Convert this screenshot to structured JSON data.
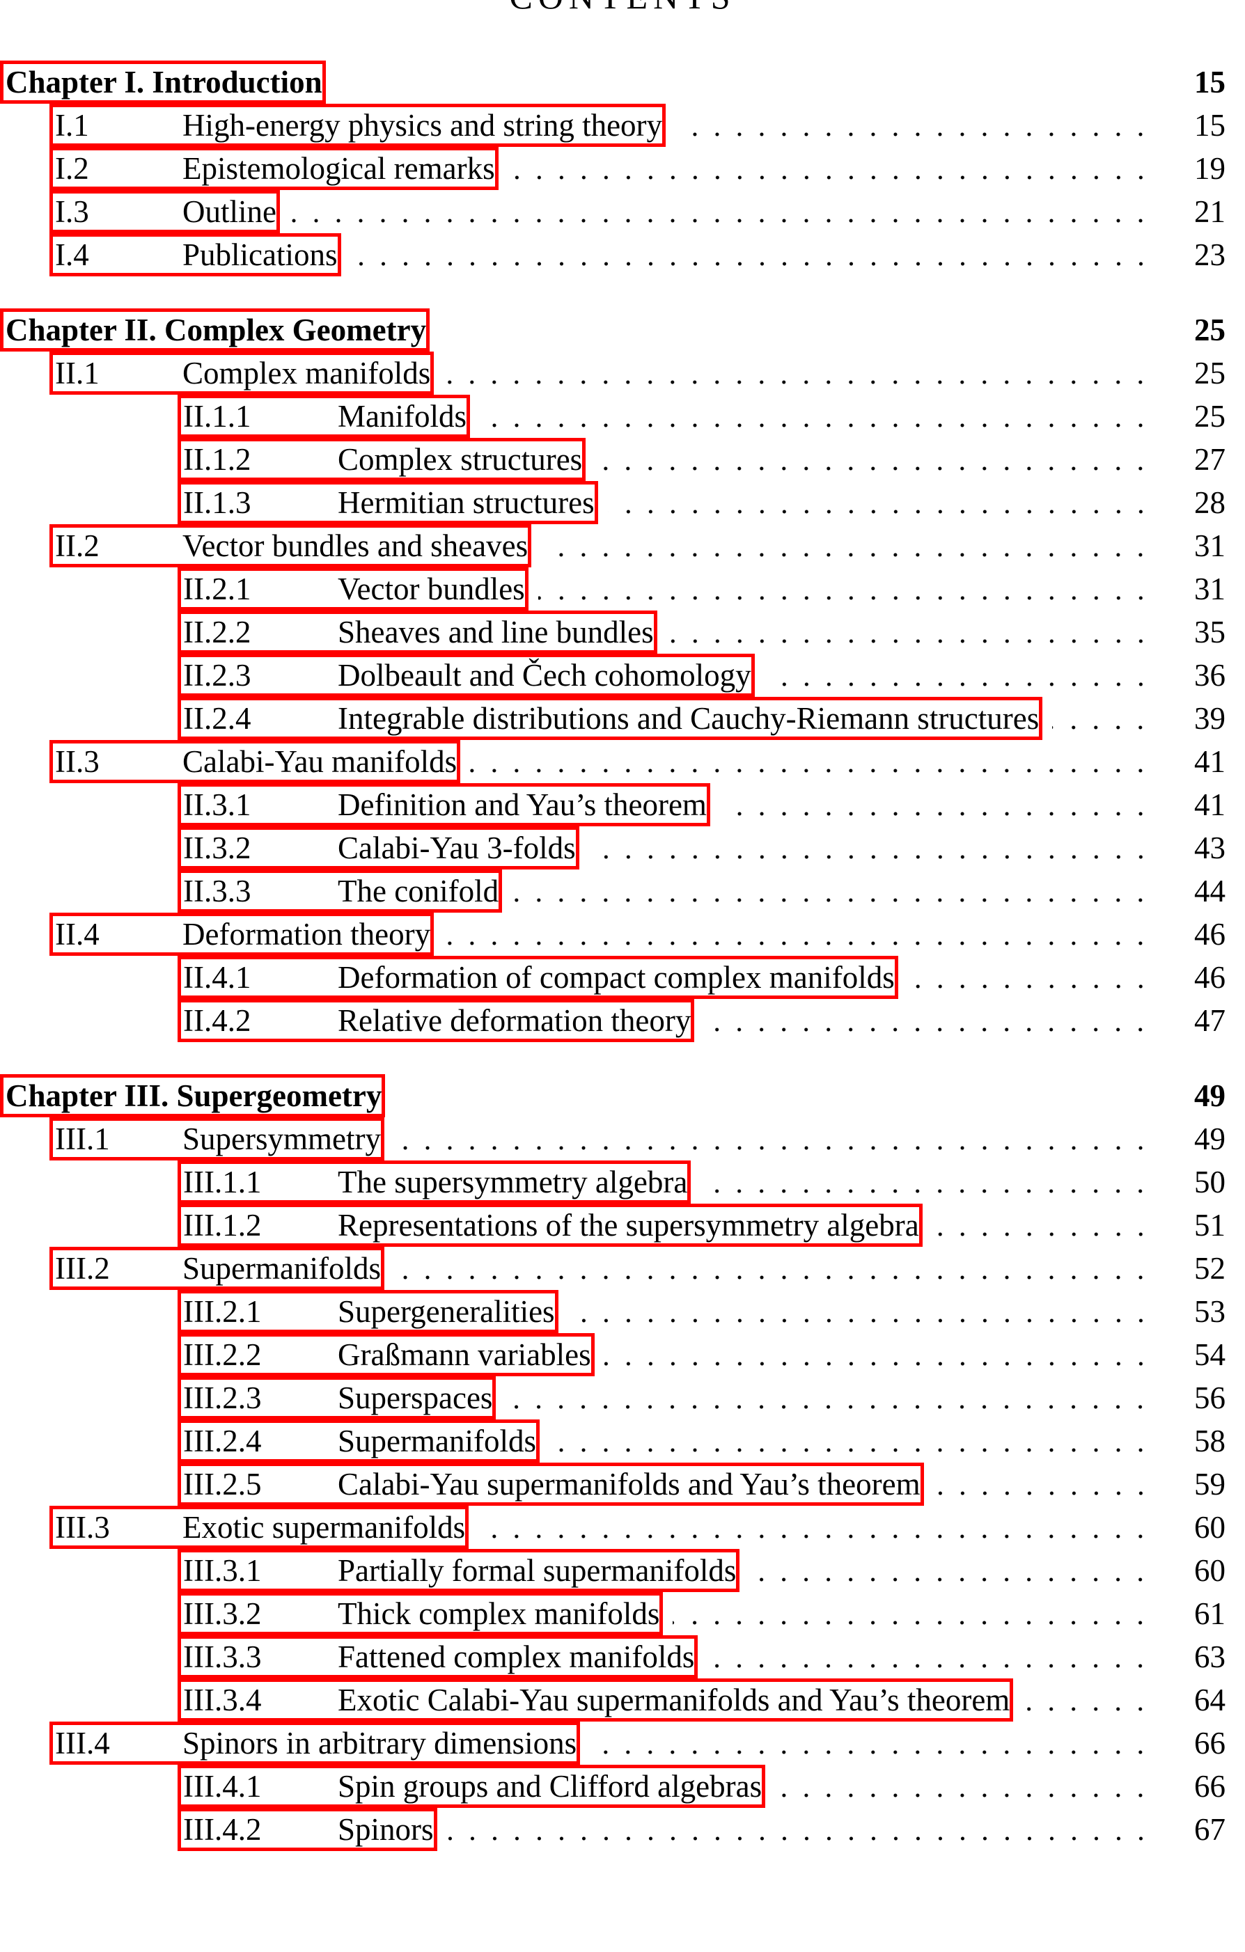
{
  "title": "CONTENTS",
  "box_color": "#ff0000",
  "chapters": [
    {
      "label": "Chapter I. Introduction",
      "page": "15",
      "sections": [
        {
          "num": "I.1",
          "title": "High-energy physics and string theory",
          "page": "15",
          "subsections": []
        },
        {
          "num": "I.2",
          "title": "Epistemological remarks",
          "page": "19",
          "subsections": []
        },
        {
          "num": "I.3",
          "title": "Outline",
          "page": "21",
          "subsections": []
        },
        {
          "num": "I.4",
          "title": "Publications",
          "page": "23",
          "subsections": []
        }
      ]
    },
    {
      "label": "Chapter II. Complex Geometry",
      "page": "25",
      "sections": [
        {
          "num": "II.1",
          "title": "Complex manifolds",
          "page": "25",
          "subsections": [
            {
              "num": "II.1.1",
              "title": "Manifolds",
              "page": "25"
            },
            {
              "num": "II.1.2",
              "title": "Complex structures",
              "page": "27"
            },
            {
              "num": "II.1.3",
              "title": "Hermitian structures",
              "page": "28"
            }
          ]
        },
        {
          "num": "II.2",
          "title": "Vector bundles and sheaves",
          "page": "31",
          "subsections": [
            {
              "num": "II.2.1",
              "title": "Vector bundles",
              "page": "31"
            },
            {
              "num": "II.2.2",
              "title": "Sheaves and line bundles",
              "page": "35"
            },
            {
              "num": "II.2.3",
              "title": "Dolbeault and Čech cohomology",
              "page": "36"
            },
            {
              "num": "II.2.4",
              "title": "Integrable distributions and Cauchy-Riemann structures",
              "page": "39"
            }
          ]
        },
        {
          "num": "II.3",
          "title": "Calabi-Yau manifolds",
          "page": "41",
          "subsections": [
            {
              "num": "II.3.1",
              "title": "Definition and Yau’s theorem",
              "page": "41"
            },
            {
              "num": "II.3.2",
              "title": "Calabi-Yau 3-folds",
              "page": "43"
            },
            {
              "num": "II.3.3",
              "title": "The conifold",
              "page": "44"
            }
          ]
        },
        {
          "num": "II.4",
          "title": "Deformation theory",
          "page": "46",
          "subsections": [
            {
              "num": "II.4.1",
              "title": "Deformation of compact complex manifolds",
              "page": "46"
            },
            {
              "num": "II.4.2",
              "title": "Relative deformation theory",
              "page": "47"
            }
          ]
        }
      ]
    },
    {
      "label": "Chapter III. Supergeometry",
      "page": "49",
      "sections": [
        {
          "num": "III.1",
          "title": "Supersymmetry",
          "page": "49",
          "subsections": [
            {
              "num": "III.1.1",
              "title": "The supersymmetry algebra",
              "page": "50"
            },
            {
              "num": "III.1.2",
              "title": "Representations of the supersymmetry algebra",
              "page": "51"
            }
          ]
        },
        {
          "num": "III.2",
          "title": "Supermanifolds",
          "page": "52",
          "subsections": [
            {
              "num": "III.2.1",
              "title": "Supergeneralities",
              "page": "53"
            },
            {
              "num": "III.2.2",
              "title": "Graßmann variables",
              "page": "54"
            },
            {
              "num": "III.2.3",
              "title": "Superspaces",
              "page": "56"
            },
            {
              "num": "III.2.4",
              "title": "Supermanifolds",
              "page": "58"
            },
            {
              "num": "III.2.5",
              "title": "Calabi-Yau supermanifolds and Yau’s theorem",
              "page": "59"
            }
          ]
        },
        {
          "num": "III.3",
          "title": "Exotic supermanifolds",
          "page": "60",
          "subsections": [
            {
              "num": "III.3.1",
              "title": "Partially formal supermanifolds",
              "page": "60"
            },
            {
              "num": "III.3.2",
              "title": "Thick complex manifolds",
              "page": "61"
            },
            {
              "num": "III.3.3",
              "title": "Fattened complex manifolds",
              "page": "63"
            },
            {
              "num": "III.3.4",
              "title": "Exotic Calabi-Yau supermanifolds and Yau’s theorem",
              "page": "64"
            }
          ]
        },
        {
          "num": "III.4",
          "title": "Spinors in arbitrary dimensions",
          "page": "66",
          "subsections": [
            {
              "num": "III.4.1",
              "title": "Spin groups and Clifford algebras",
              "page": "66"
            },
            {
              "num": "III.4.2",
              "title": "Spinors",
              "page": "67"
            }
          ]
        }
      ]
    }
  ]
}
